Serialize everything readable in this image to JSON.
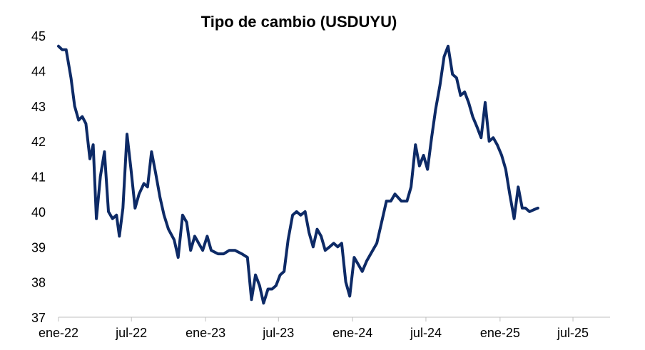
{
  "chart_data": {
    "type": "line",
    "title": "Tipo de cambio (USDUYU)",
    "xlabel": "",
    "ylabel": "",
    "ylim": [
      37,
      45
    ],
    "yticks": [
      37,
      38,
      39,
      40,
      41,
      42,
      43,
      44,
      45
    ],
    "xlim": [
      "2022-01",
      "2025-10"
    ],
    "x_tick_labels": [
      {
        "label": "ene-22",
        "date": "2022-01"
      },
      {
        "label": "jul-22",
        "date": "2022-07"
      },
      {
        "label": "ene-23",
        "date": "2023-01"
      },
      {
        "label": "jul-23",
        "date": "2023-07"
      },
      {
        "label": "ene-24",
        "date": "2024-01"
      },
      {
        "label": "jul-24",
        "date": "2024-07"
      },
      {
        "label": "ene-25",
        "date": "2025-01"
      },
      {
        "label": "jul-25",
        "date": "2025-07"
      }
    ],
    "grid": false,
    "legend": "none",
    "series": [
      {
        "color": "#0d2a66",
        "points": [
          [
            "2022-01-01",
            44.7
          ],
          [
            "2022-01-10",
            44.6
          ],
          [
            "2022-01-20",
            44.6
          ],
          [
            "2022-02-01",
            43.8
          ],
          [
            "2022-02-10",
            43.0
          ],
          [
            "2022-02-20",
            42.6
          ],
          [
            "2022-03-01",
            42.7
          ],
          [
            "2022-03-10",
            42.5
          ],
          [
            "2022-03-20",
            41.5
          ],
          [
            "2022-03-28",
            41.9
          ],
          [
            "2022-04-05",
            39.8
          ],
          [
            "2022-04-15",
            41.0
          ],
          [
            "2022-04-25",
            41.7
          ],
          [
            "2022-05-05",
            40.0
          ],
          [
            "2022-05-15",
            39.8
          ],
          [
            "2022-05-25",
            39.9
          ],
          [
            "2022-06-01",
            39.3
          ],
          [
            "2022-06-10",
            40.1
          ],
          [
            "2022-06-20",
            42.2
          ],
          [
            "2022-06-30",
            41.2
          ],
          [
            "2022-07-10",
            40.1
          ],
          [
            "2022-07-20",
            40.5
          ],
          [
            "2022-08-01",
            40.8
          ],
          [
            "2022-08-10",
            40.7
          ],
          [
            "2022-08-20",
            41.7
          ],
          [
            "2022-08-30",
            41.1
          ],
          [
            "2022-09-10",
            40.4
          ],
          [
            "2022-09-20",
            39.9
          ],
          [
            "2022-10-01",
            39.5
          ],
          [
            "2022-10-15",
            39.2
          ],
          [
            "2022-10-25",
            38.7
          ],
          [
            "2022-11-05",
            39.9
          ],
          [
            "2022-11-15",
            39.7
          ],
          [
            "2022-11-25",
            38.9
          ],
          [
            "2022-12-05",
            39.3
          ],
          [
            "2022-12-15",
            39.1
          ],
          [
            "2022-12-25",
            38.9
          ],
          [
            "2023-01-05",
            39.3
          ],
          [
            "2023-01-15",
            38.9
          ],
          [
            "2023-02-01",
            38.8
          ],
          [
            "2023-02-15",
            38.8
          ],
          [
            "2023-03-01",
            38.9
          ],
          [
            "2023-03-15",
            38.9
          ],
          [
            "2023-04-01",
            38.8
          ],
          [
            "2023-04-15",
            38.7
          ],
          [
            "2023-04-25",
            37.5
          ],
          [
            "2023-05-05",
            38.2
          ],
          [
            "2023-05-15",
            37.9
          ],
          [
            "2023-05-25",
            37.4
          ],
          [
            "2023-06-05",
            37.8
          ],
          [
            "2023-06-15",
            37.8
          ],
          [
            "2023-06-25",
            37.9
          ],
          [
            "2023-07-05",
            38.2
          ],
          [
            "2023-07-15",
            38.3
          ],
          [
            "2023-07-25",
            39.2
          ],
          [
            "2023-08-05",
            39.9
          ],
          [
            "2023-08-15",
            40.0
          ],
          [
            "2023-08-25",
            39.9
          ],
          [
            "2023-09-05",
            40.0
          ],
          [
            "2023-09-15",
            39.4
          ],
          [
            "2023-09-25",
            39.0
          ],
          [
            "2023-10-05",
            39.5
          ],
          [
            "2023-10-15",
            39.3
          ],
          [
            "2023-10-25",
            38.9
          ],
          [
            "2023-11-05",
            39.0
          ],
          [
            "2023-11-15",
            39.1
          ],
          [
            "2023-11-25",
            39.0
          ],
          [
            "2023-12-05",
            39.1
          ],
          [
            "2023-12-15",
            38.0
          ],
          [
            "2023-12-25",
            37.6
          ],
          [
            "2024-01-05",
            38.7
          ],
          [
            "2024-01-15",
            38.5
          ],
          [
            "2024-01-25",
            38.3
          ],
          [
            "2024-02-05",
            38.6
          ],
          [
            "2024-02-15",
            38.8
          ],
          [
            "2024-03-01",
            39.1
          ],
          [
            "2024-03-15",
            39.8
          ],
          [
            "2024-03-25",
            40.3
          ],
          [
            "2024-04-05",
            40.3
          ],
          [
            "2024-04-15",
            40.5
          ],
          [
            "2024-05-01",
            40.3
          ],
          [
            "2024-05-15",
            40.3
          ],
          [
            "2024-05-25",
            40.7
          ],
          [
            "2024-06-05",
            41.9
          ],
          [
            "2024-06-15",
            41.3
          ],
          [
            "2024-06-25",
            41.6
          ],
          [
            "2024-07-05",
            41.2
          ],
          [
            "2024-07-15",
            42.1
          ],
          [
            "2024-07-25",
            42.9
          ],
          [
            "2024-08-05",
            43.6
          ],
          [
            "2024-08-15",
            44.4
          ],
          [
            "2024-08-25",
            44.7
          ],
          [
            "2024-09-05",
            43.9
          ],
          [
            "2024-09-15",
            43.8
          ],
          [
            "2024-09-25",
            43.3
          ],
          [
            "2024-10-05",
            43.4
          ],
          [
            "2024-10-15",
            43.1
          ],
          [
            "2024-10-25",
            42.7
          ],
          [
            "2024-11-05",
            42.4
          ],
          [
            "2024-11-15",
            42.1
          ],
          [
            "2024-11-25",
            43.1
          ],
          [
            "2024-12-05",
            42.0
          ],
          [
            "2024-12-15",
            42.1
          ],
          [
            "2024-12-25",
            41.9
          ],
          [
            "2025-01-05",
            41.6
          ],
          [
            "2025-01-15",
            41.2
          ],
          [
            "2025-01-25",
            40.5
          ],
          [
            "2025-02-05",
            39.8
          ],
          [
            "2025-02-15",
            40.7
          ],
          [
            "2025-02-25",
            40.1
          ],
          [
            "2025-03-05",
            40.1
          ],
          [
            "2025-03-15",
            40.0
          ],
          [
            "2025-03-25",
            40.05
          ],
          [
            "2025-04-05",
            40.1
          ]
        ]
      }
    ]
  }
}
